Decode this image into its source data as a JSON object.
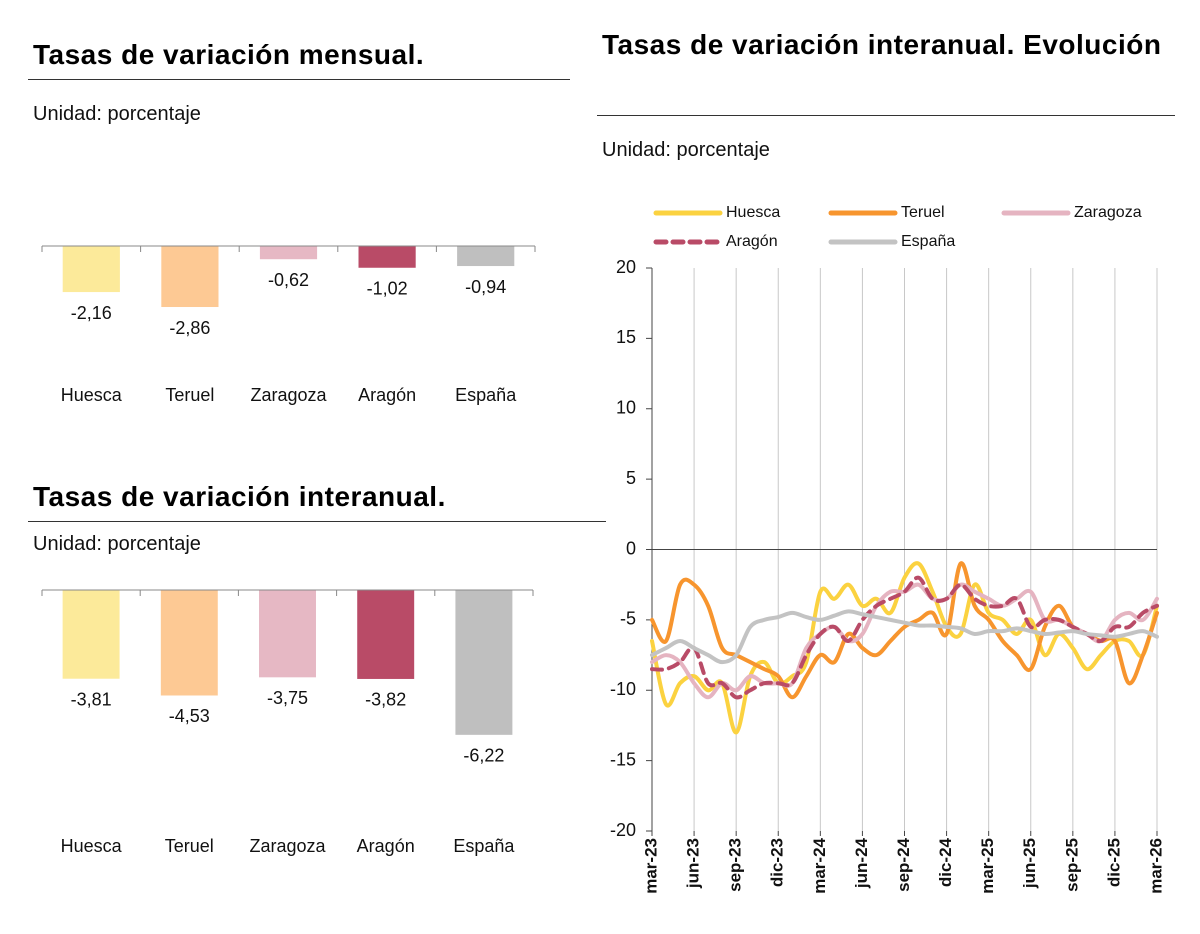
{
  "chart_data": [
    {
      "type": "bar",
      "title": "Tasas de variación mensual.",
      "subtitle": "Unidad: porcentaje",
      "categories": [
        "Huesca",
        "Teruel",
        "Zaragoza",
        "Aragón",
        "España"
      ],
      "values": [
        -2.16,
        -2.86,
        -0.62,
        -1.02,
        -0.94
      ],
      "value_labels": [
        "-2,16",
        "-2,86",
        "-0,62",
        "-1,02",
        "-0,94"
      ],
      "colors": [
        "#fcea9a",
        "#fdc994",
        "#e6b8c4",
        "#b94b67",
        "#bfbfbf"
      ],
      "ylim": [
        -6,
        0
      ]
    },
    {
      "type": "bar",
      "title": "Tasas de variación interanual.",
      "subtitle": "Unidad: porcentaje",
      "categories": [
        "Huesca",
        "Teruel",
        "Zaragoza",
        "Aragón",
        "España"
      ],
      "values": [
        -3.81,
        -4.53,
        -3.75,
        -3.82,
        -6.22
      ],
      "value_labels": [
        "-3,81",
        "-4,53",
        "-3,75",
        "-3,82",
        "-6,22"
      ],
      "colors": [
        "#fcea9a",
        "#fdc994",
        "#e6b8c4",
        "#b94b67",
        "#bfbfbf"
      ],
      "ylim": [
        -7,
        0
      ]
    },
    {
      "type": "line",
      "title": "Tasas de variación interanual. Evolución",
      "subtitle": "Unidad: porcentaje",
      "categories": [
        "mar-23",
        null,
        null,
        "jun-23",
        null,
        null,
        "sep-23",
        null,
        null,
        "dic-23",
        null,
        null,
        "mar-24",
        null,
        null,
        "jun-24",
        null,
        null,
        "sep-24",
        null,
        null,
        "dic-24",
        null,
        null,
        "mar-25",
        null,
        null,
        "jun-25",
        null,
        null,
        "sep-25",
        null,
        null,
        "dic-25",
        null,
        null,
        "mar-26"
      ],
      "ylim": [
        -20,
        20
      ],
      "yticks": [
        20,
        15,
        10,
        5,
        0,
        -5,
        -10,
        -15,
        -20
      ],
      "series": [
        {
          "name": "Huesca",
          "color": "#fbd240",
          "dashed": false,
          "values": [
            -6.5,
            -11,
            -9.5,
            -9,
            -10,
            -9.5,
            -13,
            -9,
            -8,
            -9.5,
            -9,
            -8,
            -3,
            -3.5,
            -2.5,
            -4,
            -3.5,
            -4.5,
            -2,
            -1,
            -3,
            -5.5,
            -6,
            -2.5,
            -4.5,
            -5,
            -6,
            -5,
            -7.5,
            -6,
            -7,
            -8.5,
            -7.5,
            -6.5,
            -6.5,
            -7.5,
            -4
          ]
        },
        {
          "name": "Teruel",
          "color": "#f7952e",
          "dashed": false,
          "values": [
            -5,
            -6.5,
            -2.5,
            -2.5,
            -4,
            -7,
            -7.5,
            -8,
            -8.5,
            -9,
            -10.5,
            -9,
            -7.5,
            -8,
            -6,
            -7,
            -7.5,
            -6.5,
            -5.5,
            -5,
            -4.5,
            -6,
            -1,
            -4,
            -5,
            -6.5,
            -7.5,
            -8.5,
            -5.5,
            -4,
            -5.5,
            -6,
            -6.5,
            -6.5,
            -9.5,
            -7.5,
            -4.5
          ]
        },
        {
          "name": "Zaragoza",
          "color": "#e5b4c1",
          "dashed": false,
          "values": [
            -8,
            -7.5,
            -8,
            -9.5,
            -10.5,
            -9.5,
            -10,
            -9,
            -9.5,
            -9.5,
            -9.5,
            -7,
            -6,
            -5.5,
            -6.5,
            -6,
            -4,
            -3,
            -3,
            -2.5,
            -3.5,
            -3.5,
            -2.5,
            -3,
            -3.5,
            -4,
            -3.5,
            -3,
            -5,
            -5,
            -5.5,
            -6,
            -6.5,
            -5,
            -4.5,
            -5,
            -3.5
          ]
        },
        {
          "name": "Aragón",
          "color": "#b94b67",
          "dashed": true,
          "values": [
            -8.5,
            -8.5,
            -8,
            -7,
            -9.5,
            -9.5,
            -10.5,
            -10,
            -9.5,
            -9.5,
            -9.5,
            -7.5,
            -6,
            -5.5,
            -6.5,
            -5,
            -4,
            -3.5,
            -3,
            -2,
            -3.5,
            -3.5,
            -2.5,
            -3.5,
            -4,
            -4,
            -3.5,
            -5.5,
            -5,
            -5,
            -5.5,
            -6,
            -6.5,
            -5.5,
            -5.5,
            -4.5,
            -4
          ]
        },
        {
          "name": "España",
          "color": "#c3c3c3",
          "dashed": false,
          "values": [
            -7.5,
            -7,
            -6.5,
            -7,
            -7.5,
            -8,
            -7.5,
            -5.5,
            -5,
            -4.8,
            -4.5,
            -4.8,
            -5,
            -4.7,
            -4.4,
            -4.6,
            -4.8,
            -5,
            -5.2,
            -5.4,
            -5.4,
            -5.5,
            -5.6,
            -6,
            -5.8,
            -5.8,
            -5.6,
            -5.8,
            -6,
            -5.9,
            -5.8,
            -6,
            -6.1,
            -6.2,
            -6,
            -5.8,
            -6.2
          ]
        }
      ]
    }
  ]
}
